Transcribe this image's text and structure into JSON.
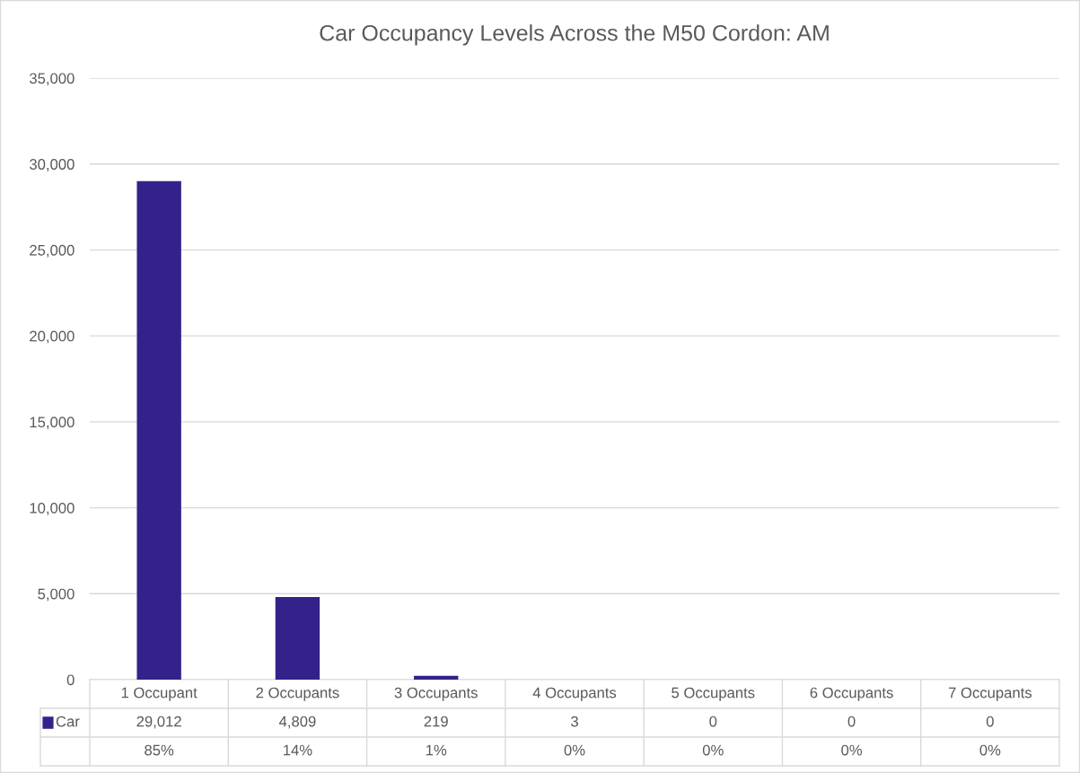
{
  "chart_data": {
    "type": "bar",
    "title": "Car Occupancy Levels Across the M50 Cordon: AM",
    "categories": [
      "1 Occupant",
      "2 Occupants",
      "3 Occupants",
      "4 Occupants",
      "5 Occupants",
      "6 Occupants",
      "7 Occupants"
    ],
    "series": [
      {
        "name": "Car",
        "color": "#35218a",
        "values": [
          29012,
          4809,
          219,
          3,
          0,
          0,
          0
        ],
        "value_labels": [
          "29,012",
          "4,809",
          "219",
          "3",
          "0",
          "0",
          "0"
        ]
      }
    ],
    "annotations": [
      "85%",
      "14%",
      "1%",
      "0%",
      "0%",
      "0%",
      "0%"
    ],
    "ylim": [
      0,
      35000
    ],
    "yticks": [
      {
        "value": 0,
        "label": "0"
      },
      {
        "value": 5000,
        "label": "5,000"
      },
      {
        "value": 10000,
        "label": "10,000"
      },
      {
        "value": 15000,
        "label": "15,000"
      },
      {
        "value": 20000,
        "label": "20,000"
      },
      {
        "value": 25000,
        "label": "25,000"
      },
      {
        "value": 30000,
        "label": "30,000"
      },
      {
        "value": 35000,
        "label": "35,000"
      }
    ],
    "grid": "y"
  }
}
